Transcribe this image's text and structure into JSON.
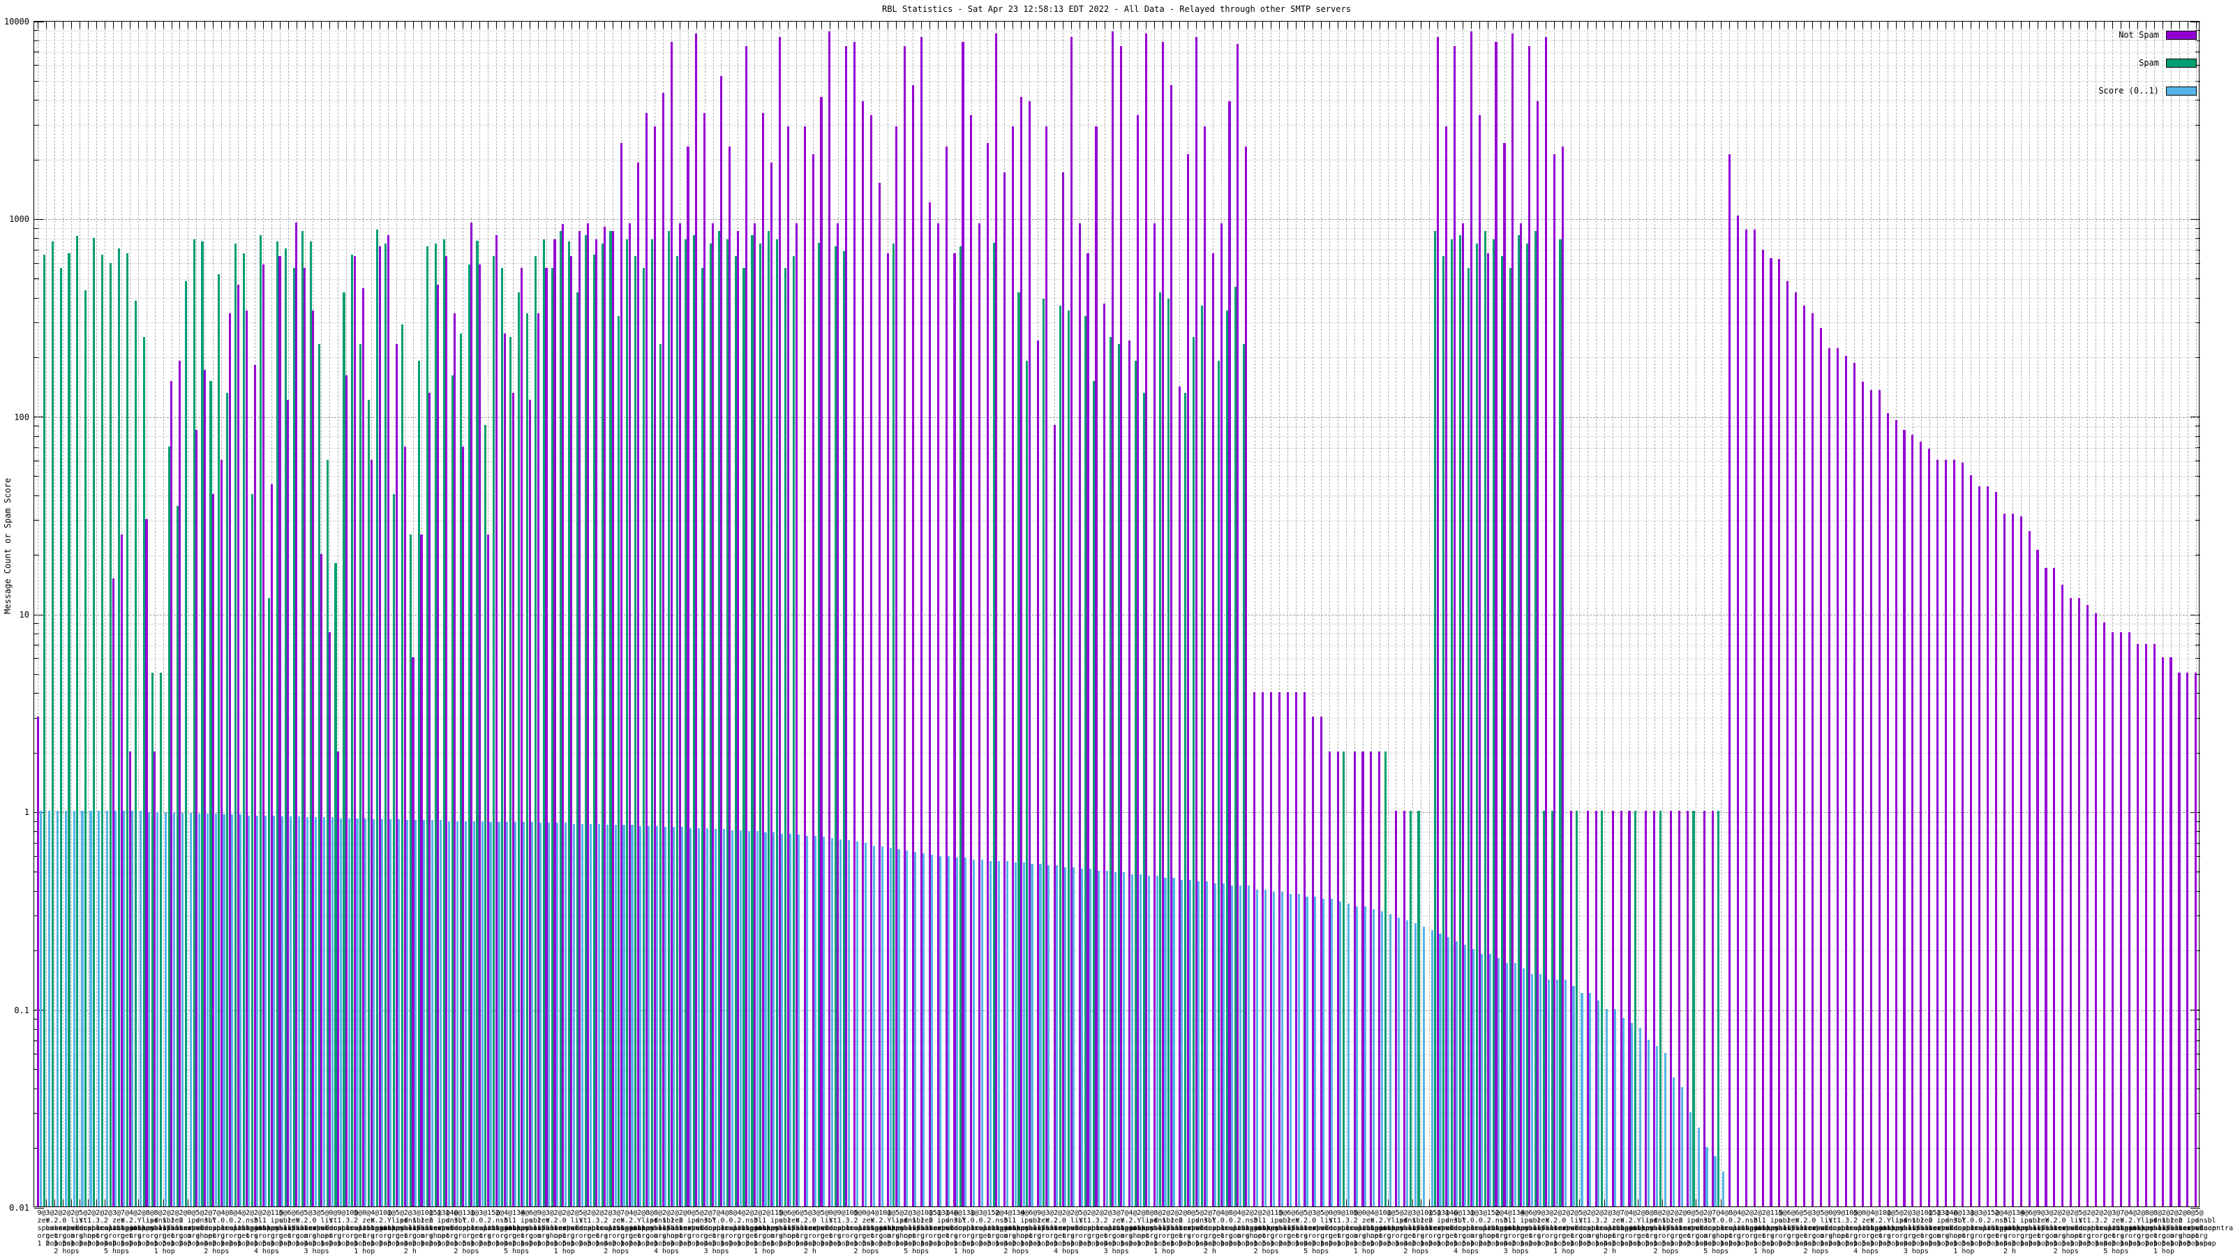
{
  "title": "RBL Statistics - Sat Apr 23 12:58:13 EDT 2022 - All Data - Relayed through other SMTP servers",
  "legend": [
    {
      "label": "Not Spam",
      "color": "#9400d3"
    },
    {
      "label": "Spam",
      "color": "#009e73"
    },
    {
      "label": "Score (0..1)",
      "color": "#56b4e9"
    }
  ],
  "y_axis": {
    "label": "Message Count or Spam Score",
    "ticks": [
      "10000",
      "1000",
      "100",
      "10",
      "1",
      "0.1",
      "0.01"
    ],
    "min": 0.01,
    "max": 10000,
    "scale": "log10"
  },
  "x_axis": {
    "tick_label_parts": {
      "counts": [
        "9@",
        "3@",
        "2@",
        "2@",
        "2@",
        "5@",
        "2@",
        "2@",
        "2@",
        "3@",
        "7@",
        "4@",
        "2@",
        "8@",
        "8@",
        "2@",
        "2@",
        "2@",
        "0@",
        "5@",
        "2@",
        "7@",
        "4@",
        "8@",
        "4@",
        "2@",
        "2@",
        "2@",
        "11@",
        "5@",
        "6@",
        "6@",
        "5@",
        "3@",
        "5@",
        "0@",
        "9@",
        "10@",
        "5@",
        "0@",
        "4@",
        "10@",
        "1@",
        "5@",
        "2@",
        "3@",
        "10@",
        "15@",
        "13@",
        "14@",
        "6@",
        "13@",
        "1@",
        "3@",
        "15@",
        "2@",
        "4@",
        "13@",
        "4@",
        "6@"
      ],
      "line2": [
        "zen",
        "Y.",
        "2.",
        "0",
        "list",
        "Y.",
        "1.",
        "3.",
        "2",
        "zen",
        "Y.",
        "2.",
        "Ylist",
        "ips",
        "dnsbl",
        "1",
        "zen",
        "2",
        "ips",
        "dnsbl",
        "3.",
        "Y.",
        "0.",
        "0.",
        "2.",
        "nsbl",
        "3.",
        "1",
        "ips",
        "ubl"
      ],
      "line3": [
        "spamhaus",
        "barracudacentral",
        "sorbs",
        "spamcop",
        "wl",
        "dnsbl",
        "spameatingmonkey",
        "uceprotect",
        "spamhaus",
        "abuseat",
        "spamhaus",
        "junkemailfilter",
        "spamhaus",
        "psbl",
        "sorbs"
      ],
      "line4": [
        "org",
        "net",
        "org",
        "com",
        "org",
        "shop",
        "net",
        "org",
        "gr",
        "org",
        "net",
        "org",
        "sr",
        "org"
      ],
      "line5": [
        "1 hop",
        "2 hops",
        "1 hop",
        "5 hops",
        "1 hop",
        "2 hops",
        "3 hops",
        "1 hop",
        "4 hops",
        "2 hops",
        "1 hop",
        "2 hops"
      ],
      "line6": [
        "2 hops",
        "5 hops",
        "1 hop",
        "2 hops",
        "4 hops",
        "3 hops",
        "1 hop",
        "2 h"
      ]
    }
  },
  "chart_data": {
    "type": "bar",
    "y_scale": "log10",
    "ylim": [
      0.01,
      10000
    ],
    "n_categories": 260,
    "cluster_draw_order": [
      "Spam",
      "Not Spam",
      "Score (0..1)"
    ],
    "title": "RBL Statistics - Sat Apr 23 12:58:13 EDT 2022 - All Data - Relayed through other SMTP servers",
    "ylabel": "Message Count or Spam Score",
    "grid": true,
    "legend_position": "top-right",
    "series": [
      {
        "name": "Not Spam",
        "color": "#9400d3",
        "values": [
          3,
          null,
          null,
          null,
          null,
          null,
          null,
          null,
          null,
          15,
          25,
          2,
          null,
          30,
          2,
          null,
          150,
          190,
          null,
          85,
          170,
          40,
          60,
          330,
          460,
          340,
          180,
          580,
          45,
          640,
          120,
          950,
          560,
          340,
          20,
          8,
          2,
          160,
          640,
          440,
          60,
          720,
          820,
          230,
          70,
          6,
          25,
          130,
          460,
          640,
          330,
          70,
          950,
          580,
          25,
          820,
          260,
          130,
          560,
          120,
          330,
          560,
          780,
          930,
          640,
          860,
          940,
          780,
          900,
          860,
          2400,
          940,
          1900,
          3400,
          2900,
          4300,
          7800,
          940,
          2300,
          8600,
          3400,
          940,
          5200,
          2300,
          860,
          7400,
          940,
          3400,
          1900,
          8200,
          2900,
          940,
          2900,
          2100,
          4100,
          8800,
          940,
          7400,
          7800,
          3900,
          3300,
          1500,
          660,
          2900,
          7400,
          4700,
          8200,
          1200,
          940,
          2300,
          660,
          7800,
          3300,
          940,
          2400,
          8600,
          1700,
          2900,
          4100,
          3900,
          240,
          2900,
          90,
          1700,
          8200,
          940,
          660,
          2900,
          370,
          8800,
          7400,
          240,
          3300,
          8600,
          940,
          7800,
          4700,
          140,
          2100,
          8200,
          2900,
          660,
          940,
          3900,
          7600,
          2300,
          4,
          4,
          4,
          4,
          4,
          4,
          4,
          3,
          3,
          2,
          2,
          null,
          2,
          2,
          2,
          2,
          null,
          1,
          1,
          null,
          null,
          null,
          8200,
          2900,
          7400,
          940,
          8800,
          3300,
          660,
          7800,
          2400,
          8600,
          940,
          7400,
          3900,
          8200,
          2100,
          2300,
          1,
          null,
          1,
          1,
          null,
          1,
          1,
          1,
          null,
          1,
          1,
          null,
          1,
          1,
          1,
          null,
          1,
          1,
          null,
          2100,
          1030,
          870,
          870,
          690,
          625,
          620,
          480,
          420,
          360,
          330,
          278,
          220,
          220,
          200,
          185,
          148,
          135,
          135,
          103,
          95,
          85,
          80,
          74,
          68,
          60,
          60,
          60,
          58,
          50,
          44,
          44,
          41,
          32,
          32,
          31,
          26,
          21,
          17,
          17,
          14,
          12,
          12,
          11,
          10,
          9,
          8,
          8,
          8,
          7,
          7,
          7,
          6,
          6,
          5,
          5,
          5
        ]
      },
      {
        "name": "Spam",
        "color": "#009e73",
        "values": [
          null,
          650,
          760,
          560,
          660,
          810,
          430,
          790,
          650,
          590,
          700,
          660,
          380,
          250,
          5,
          5,
          70,
          35,
          480,
          780,
          760,
          150,
          520,
          130,
          740,
          660,
          40,
          820,
          12,
          760,
          700,
          560,
          860,
          760,
          230,
          60,
          18,
          420,
          650,
          230,
          120,
          870,
          740,
          40,
          290,
          25,
          190,
          720,
          740,
          780,
          160,
          260,
          580,
          770,
          90,
          640,
          560,
          250,
          420,
          330,
          640,
          780,
          560,
          860,
          760,
          420,
          820,
          650,
          740,
          860,
          320,
          780,
          640,
          560,
          780,
          230,
          860,
          640,
          780,
          820,
          560,
          740,
          860,
          780,
          640,
          560,
          820,
          740,
          860,
          780,
          560,
          640,
          null,
          null,
          750,
          null,
          720,
          680,
          null,
          null,
          null,
          null,
          null,
          740,
          null,
          null,
          null,
          null,
          null,
          null,
          null,
          720,
          null,
          null,
          null,
          750,
          null,
          null,
          420,
          190,
          null,
          390,
          null,
          360,
          340,
          null,
          320,
          150,
          null,
          250,
          230,
          null,
          190,
          130,
          null,
          420,
          390,
          null,
          130,
          250,
          360,
          null,
          190,
          340,
          450,
          230,
          null,
          null,
          null,
          null,
          null,
          null,
          null,
          null,
          null,
          null,
          null,
          2,
          null,
          null,
          null,
          null,
          2,
          null,
          null,
          1,
          1,
          null,
          860,
          640,
          780,
          820,
          560,
          740,
          860,
          780,
          640,
          560,
          820,
          740,
          860,
          1,
          1,
          780,
          null,
          1,
          null,
          null,
          1,
          null,
          null,
          null,
          1,
          null,
          null,
          1,
          null,
          null,
          null,
          1,
          null,
          null,
          1,
          null,
          null,
          null,
          null,
          null,
          null,
          null,
          null,
          null,
          null,
          null,
          null,
          null,
          null,
          null,
          null,
          null,
          null,
          null,
          null,
          null,
          null,
          null,
          null,
          null,
          null,
          null,
          null,
          null,
          null,
          null,
          null,
          null,
          null,
          null,
          null,
          null,
          null,
          null,
          null,
          null,
          null,
          null,
          null,
          null,
          null,
          null,
          null,
          null,
          null,
          null,
          null,
          null,
          null,
          null,
          null,
          null
        ]
      },
      {
        "name": "Score (0..1)",
        "color": "#56b4e9",
        "values": [
          1,
          1,
          1,
          1,
          1,
          1,
          1,
          1,
          1,
          1,
          1,
          1,
          1,
          0.99,
          0.99,
          0.99,
          0.98,
          0.98,
          0.98,
          0.97,
          0.97,
          0.97,
          0.96,
          0.96,
          0.96,
          0.95,
          0.95,
          0.95,
          0.95,
          0.94,
          0.94,
          0.94,
          0.93,
          0.93,
          0.93,
          0.93,
          0.92,
          0.92,
          0.92,
          0.92,
          0.91,
          0.91,
          0.91,
          0.91,
          0.9,
          0.9,
          0.9,
          0.9,
          0.9,
          0.89,
          0.89,
          0.89,
          0.89,
          0.89,
          0.88,
          0.88,
          0.88,
          0.88,
          0.88,
          0.88,
          0.87,
          0.87,
          0.87,
          0.87,
          0.86,
          0.86,
          0.86,
          0.86,
          0.85,
          0.85,
          0.85,
          0.85,
          0.84,
          0.84,
          0.84,
          0.83,
          0.83,
          0.83,
          0.82,
          0.82,
          0.82,
          0.81,
          0.81,
          0.8,
          0.8,
          0.79,
          0.79,
          0.78,
          0.78,
          0.77,
          0.77,
          0.76,
          0.75,
          0.75,
          0.74,
          0.73,
          0.72,
          0.71,
          0.7,
          0.69,
          0.67,
          0.66,
          0.65,
          0.64,
          0.63,
          0.62,
          0.61,
          0.6,
          0.59,
          0.59,
          0.58,
          0.58,
          0.57,
          0.57,
          0.56,
          0.56,
          0.56,
          0.55,
          0.55,
          0.54,
          0.54,
          0.53,
          0.53,
          0.52,
          0.52,
          0.51,
          0.51,
          0.5,
          0.5,
          0.49,
          0.49,
          0.48,
          0.48,
          0.47,
          0.47,
          0.46,
          0.46,
          0.45,
          0.45,
          0.44,
          0.44,
          0.43,
          0.43,
          0.42,
          0.42,
          0.42,
          0.4,
          0.4,
          0.39,
          0.39,
          0.38,
          0.38,
          0.37,
          0.37,
          0.36,
          0.36,
          0.35,
          0.34,
          0.33,
          0.33,
          0.32,
          0.31,
          0.3,
          0.29,
          0.28,
          0.27,
          0.26,
          0.25,
          0.24,
          0.23,
          0.22,
          0.21,
          0.2,
          0.19,
          0.19,
          0.18,
          0.17,
          0.17,
          0.16,
          0.15,
          0.15,
          0.14,
          0.14,
          0.14,
          0.13,
          0.12,
          0.12,
          0.11,
          0.1,
          0.1,
          0.09,
          0.085,
          0.08,
          0.07,
          0.065,
          0.06,
          0.045,
          0.04,
          0.03,
          0.025,
          0.02,
          0.018,
          0.015,
          null,
          null,
          null,
          null,
          null,
          null,
          null,
          null,
          null,
          null,
          null,
          null,
          null,
          null,
          null,
          null,
          null,
          null,
          null,
          null,
          null,
          null,
          null,
          null,
          null,
          null,
          null,
          null,
          null,
          null,
          null,
          null,
          null,
          null,
          null,
          null,
          null,
          null,
          null,
          null,
          null,
          null,
          null,
          null,
          null,
          null,
          null,
          null,
          null,
          null,
          null,
          null,
          null,
          null,
          null,
          null,
          null
        ]
      }
    ]
  }
}
